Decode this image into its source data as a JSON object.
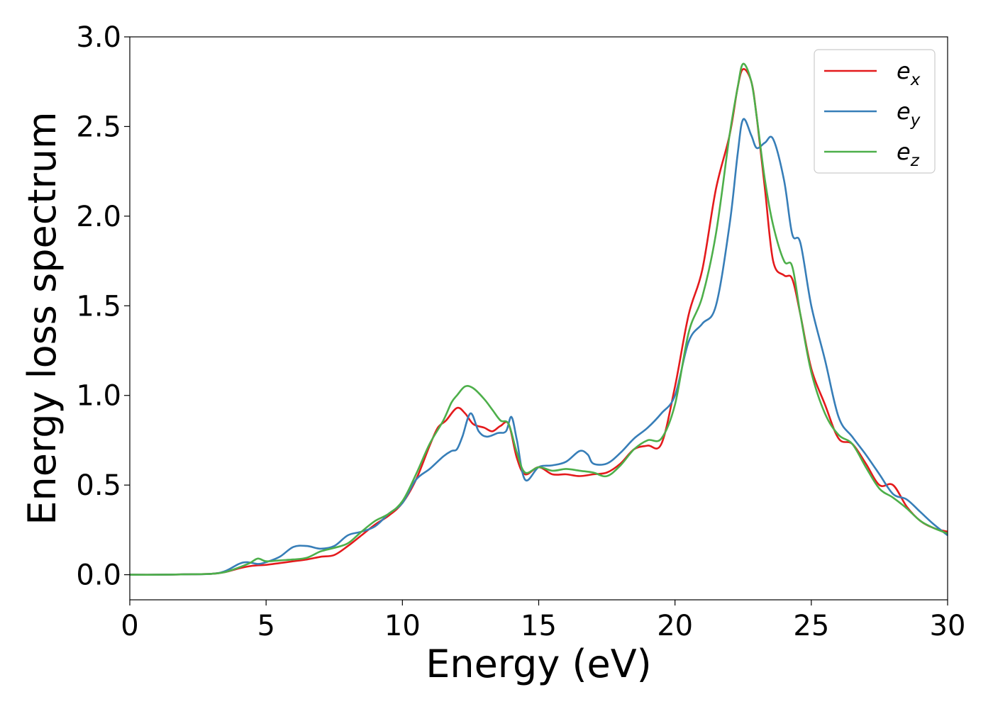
{
  "chart_data": {
    "type": "line",
    "xlabel": "Energy (eV)",
    "ylabel": "Energy loss spectrum",
    "xlim": [
      0,
      30
    ],
    "ylim": [
      -0.14,
      3.0
    ],
    "xticks": [
      "0",
      "5",
      "10",
      "15",
      "20",
      "25",
      "30"
    ],
    "yticks": [
      "0.0",
      "0.5",
      "1.0",
      "1.5",
      "2.0",
      "2.5",
      "3.0"
    ],
    "grid": false,
    "legend_position": "top-right",
    "series": [
      {
        "name": "e_x",
        "label_base": "e",
        "label_sub": "x",
        "color": "#e41a1c",
        "x": [
          0,
          1,
          2,
          3,
          3.5,
          4,
          4.5,
          5,
          5.5,
          6,
          6.5,
          7,
          7.5,
          8,
          8.5,
          9,
          9.5,
          10,
          10.5,
          11,
          11.3,
          11.6,
          12,
          12.3,
          12.6,
          13,
          13.3,
          13.6,
          13.9,
          14.2,
          14.5,
          15,
          15.5,
          16,
          16.5,
          17,
          17.5,
          18,
          18.5,
          19,
          19.5,
          20,
          20.5,
          21,
          21.5,
          22,
          22.3,
          22.5,
          22.8,
          23,
          23.3,
          23.6,
          24,
          24.3,
          24.6,
          25,
          25.5,
          26,
          26.5,
          27,
          27.5,
          28,
          28.5,
          29,
          29.5,
          30
        ],
        "y": [
          0,
          0,
          0.002,
          0.005,
          0.015,
          0.035,
          0.05,
          0.055,
          0.065,
          0.075,
          0.085,
          0.1,
          0.11,
          0.16,
          0.22,
          0.28,
          0.33,
          0.4,
          0.53,
          0.72,
          0.82,
          0.86,
          0.93,
          0.9,
          0.84,
          0.82,
          0.8,
          0.83,
          0.84,
          0.65,
          0.56,
          0.6,
          0.56,
          0.56,
          0.55,
          0.56,
          0.57,
          0.62,
          0.7,
          0.72,
          0.73,
          1.05,
          1.45,
          1.7,
          2.15,
          2.45,
          2.72,
          2.82,
          2.75,
          2.55,
          2.15,
          1.75,
          1.67,
          1.65,
          1.45,
          1.15,
          0.95,
          0.76,
          0.73,
          0.62,
          0.5,
          0.5,
          0.38,
          0.3,
          0.26,
          0.24
        ]
      },
      {
        "name": "e_y",
        "label_base": "e",
        "label_sub": "y",
        "color": "#377eb8",
        "x": [
          0,
          1,
          2,
          3,
          3.5,
          4,
          4.3,
          4.7,
          5,
          5.5,
          6,
          6.5,
          7,
          7.5,
          8,
          8.5,
          9,
          9.5,
          10,
          10.5,
          11,
          11.5,
          11.8,
          12,
          12.2,
          12.5,
          12.8,
          13.1,
          13.5,
          13.8,
          14,
          14.2,
          14.5,
          15,
          15.5,
          16,
          16.5,
          16.8,
          17,
          17.5,
          18,
          18.5,
          19,
          19.5,
          20,
          20.5,
          21,
          21.5,
          22,
          22.3,
          22.5,
          22.8,
          23,
          23.3,
          23.6,
          24,
          24.3,
          24.6,
          25,
          25.5,
          26,
          26.5,
          27,
          27.5,
          28,
          28.5,
          29,
          29.5,
          30
        ],
        "y": [
          0,
          0,
          0.002,
          0.005,
          0.02,
          0.06,
          0.07,
          0.06,
          0.07,
          0.1,
          0.155,
          0.16,
          0.145,
          0.16,
          0.22,
          0.24,
          0.27,
          0.34,
          0.4,
          0.53,
          0.59,
          0.66,
          0.69,
          0.7,
          0.77,
          0.9,
          0.8,
          0.77,
          0.79,
          0.8,
          0.88,
          0.75,
          0.53,
          0.6,
          0.61,
          0.63,
          0.69,
          0.67,
          0.62,
          0.62,
          0.68,
          0.76,
          0.82,
          0.9,
          1.0,
          1.3,
          1.4,
          1.5,
          1.95,
          2.35,
          2.54,
          2.45,
          2.38,
          2.41,
          2.43,
          2.2,
          1.9,
          1.85,
          1.5,
          1.2,
          0.88,
          0.77,
          0.67,
          0.56,
          0.45,
          0.42,
          0.35,
          0.28,
          0.22
        ]
      },
      {
        "name": "e_z",
        "label_base": "e",
        "label_sub": "z",
        "color": "#4daf4a",
        "x": [
          0,
          1,
          2,
          3,
          3.5,
          4,
          4.4,
          4.7,
          5,
          5.5,
          6,
          6.5,
          7,
          7.5,
          8,
          8.5,
          9,
          9.5,
          10,
          10.5,
          11,
          11.5,
          11.8,
          12,
          12.3,
          12.6,
          13,
          13.3,
          13.6,
          13.9,
          14.2,
          14.5,
          15,
          15.5,
          16,
          16.5,
          17,
          17.5,
          18,
          18.5,
          19,
          19.5,
          20,
          20.5,
          21,
          21.5,
          22,
          22.3,
          22.5,
          22.8,
          23,
          23.3,
          23.6,
          24,
          24.3,
          24.6,
          25,
          25.5,
          26,
          26.5,
          27,
          27.5,
          28,
          28.5,
          29,
          29.5,
          30
        ],
        "y": [
          0,
          0,
          0.002,
          0.005,
          0.015,
          0.04,
          0.065,
          0.09,
          0.075,
          0.08,
          0.085,
          0.095,
          0.13,
          0.15,
          0.175,
          0.24,
          0.3,
          0.34,
          0.41,
          0.56,
          0.73,
          0.86,
          0.96,
          1.0,
          1.05,
          1.04,
          0.98,
          0.92,
          0.86,
          0.84,
          0.68,
          0.57,
          0.6,
          0.58,
          0.59,
          0.58,
          0.57,
          0.55,
          0.61,
          0.7,
          0.75,
          0.76,
          0.95,
          1.35,
          1.55,
          1.9,
          2.45,
          2.72,
          2.85,
          2.75,
          2.55,
          2.2,
          1.95,
          1.75,
          1.72,
          1.45,
          1.13,
          0.9,
          0.78,
          0.73,
          0.6,
          0.48,
          0.43,
          0.37,
          0.3,
          0.26,
          0.23
        ]
      }
    ]
  }
}
